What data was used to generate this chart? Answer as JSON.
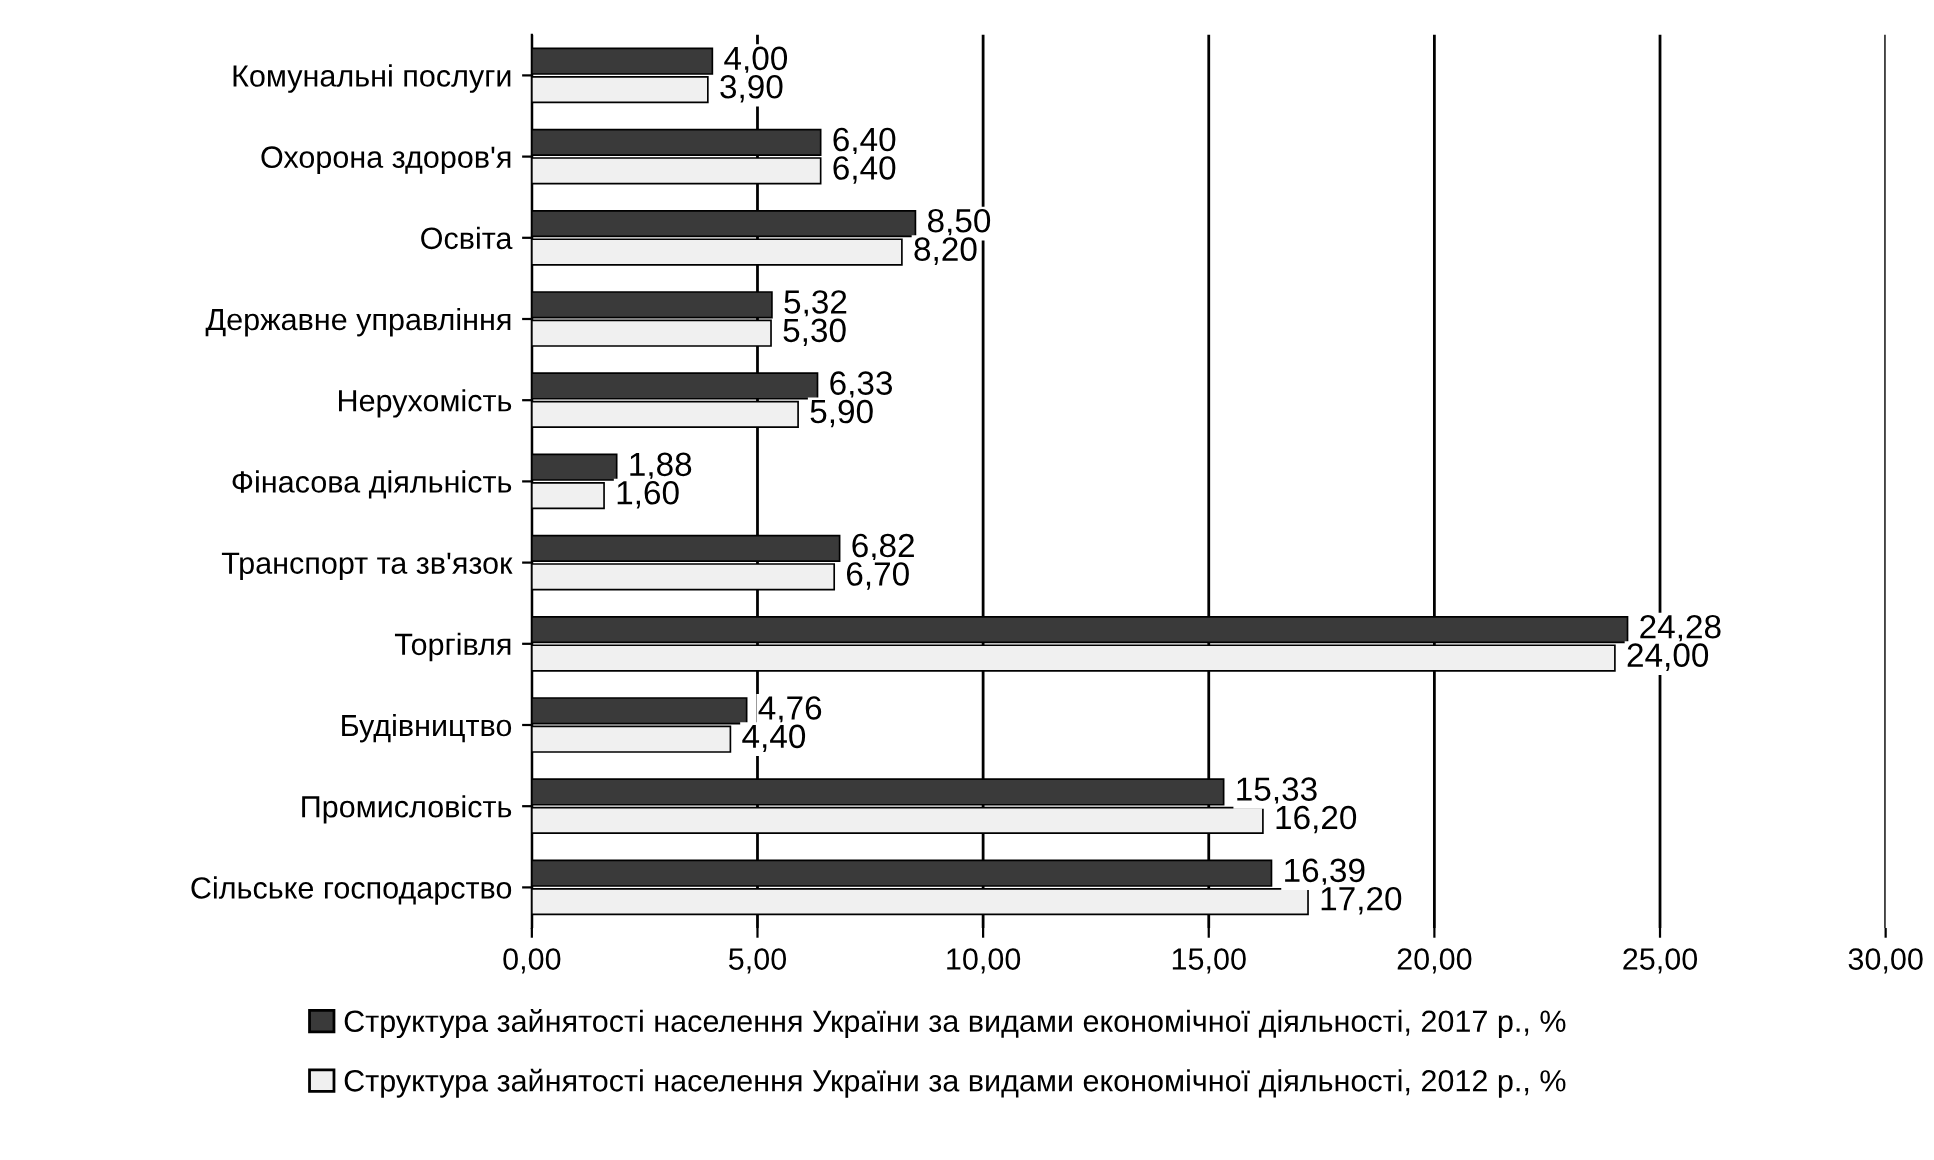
{
  "chart_data": {
    "type": "bar",
    "orientation": "horizontal",
    "categories": [
      "Комунальні послуги",
      "Охорона здоров'я",
      "Освіта",
      "Державне управління",
      "Нерухомість",
      "Фінасова діяльність",
      "Транспорт та зв'язок",
      "Торгівля",
      "Будівництво",
      "Промисловість",
      "Сільське господарство"
    ],
    "series": [
      {
        "name": "Структура зайнятості населення України за видами економічної діяльності, 2017 р., %",
        "color": "#3a3a3a",
        "values": [
          4.0,
          6.4,
          8.5,
          5.32,
          6.33,
          1.88,
          6.82,
          24.28,
          4.76,
          15.33,
          16.39
        ],
        "value_labels": [
          "4,00",
          "6,40",
          "8,50",
          "5,32",
          "6,33",
          "1,88",
          "6,82",
          "24,28",
          "4,76",
          "15,33",
          "16,39"
        ]
      },
      {
        "name": "Структура зайнятості населення України за видами економічної діяльності, 2012 р., %",
        "color": "#f0f0f0",
        "values": [
          3.9,
          6.4,
          8.2,
          5.3,
          5.9,
          1.6,
          6.7,
          24.0,
          4.4,
          16.2,
          17.2
        ],
        "value_labels": [
          "3,90",
          "6,40",
          "8,20",
          "5,30",
          "5,90",
          "1,60",
          "6,70",
          "24,00",
          "4,40",
          "16,20",
          "17,20"
        ]
      }
    ],
    "xlim": [
      0,
      30
    ],
    "xticks": [
      {
        "value": 0,
        "label": "0,00"
      },
      {
        "value": 5,
        "label": "5,00"
      },
      {
        "value": 10,
        "label": "10,00"
      },
      {
        "value": 15,
        "label": "15,00"
      },
      {
        "value": 20,
        "label": "20,00"
      },
      {
        "value": 25,
        "label": "25,00"
      },
      {
        "value": 30,
        "label": "30,00"
      }
    ],
    "grid": "x",
    "legend": "bottom"
  }
}
